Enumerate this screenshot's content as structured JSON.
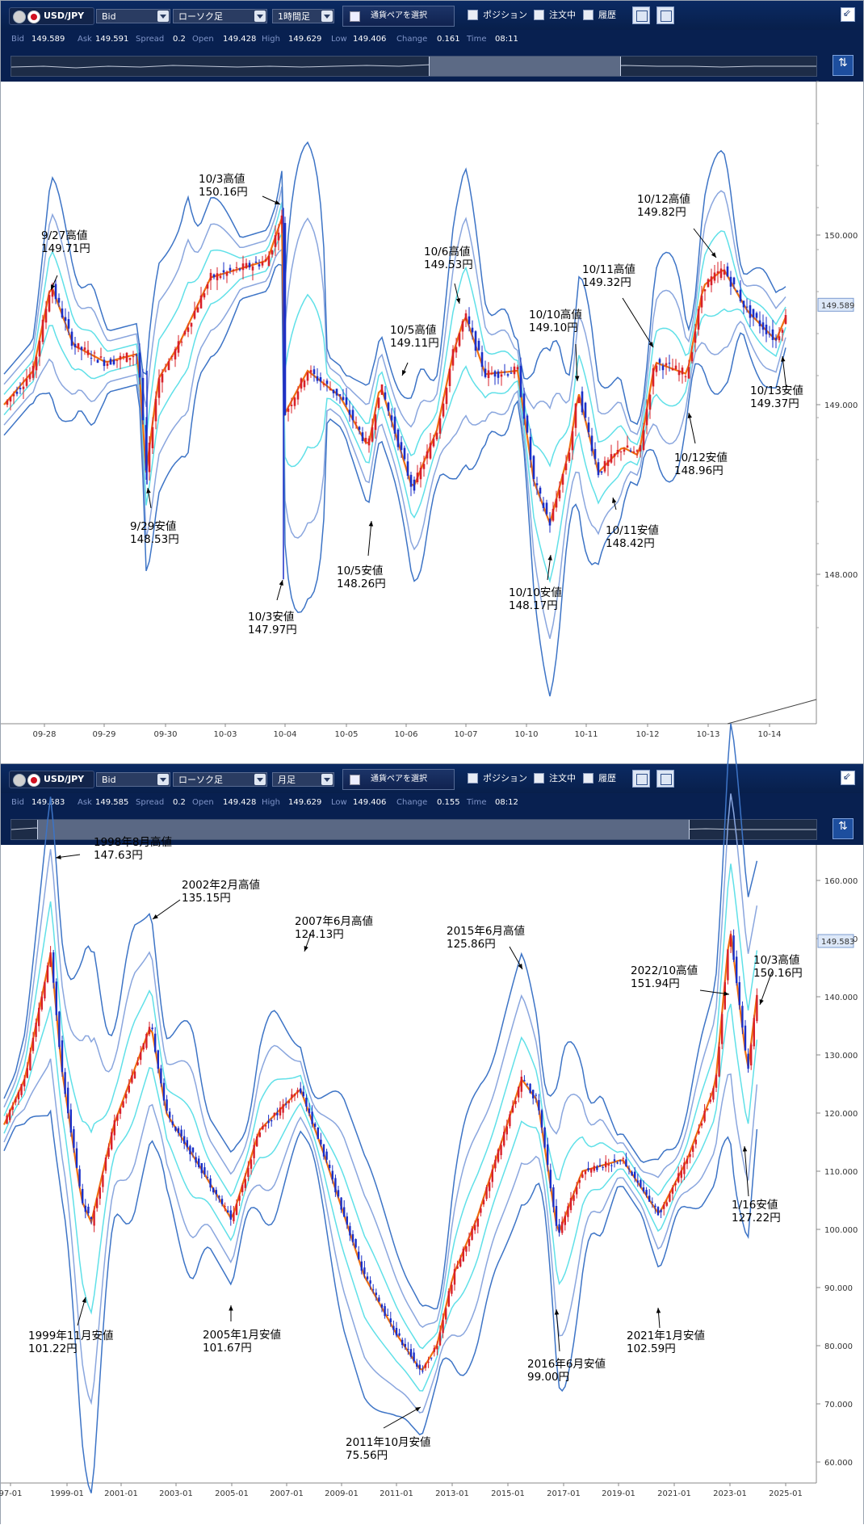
{
  "colors": {
    "bull": "#d8202a",
    "bear": "#1a2fc8",
    "ma": "#f07010",
    "bb1": "#60e0e8",
    "bb2": "#8aa6de",
    "bb3": "#3d74c6"
  },
  "icons": [
    "japan-flag-icon",
    "us-flag-icon",
    "dropdown-arrow-icon",
    "checkbox-icon",
    "window-icon",
    "minimize-icon",
    "expand-icon"
  ],
  "top": {
    "toolbar": {
      "pair": "USD/JPY",
      "price_type": "Bid",
      "chart_type": "ローソク足",
      "period": "1時間足",
      "select_pair": "通貨ペアを選択",
      "position": "ポジション",
      "orders": "注文中",
      "history": "履歴"
    },
    "quote": {
      "bid_label": "Bid",
      "bid": "149.589",
      "ask_label": "Ask",
      "ask": "149.591",
      "spread_label": "Spread",
      "spread": "0.2",
      "open_label": "Open",
      "open": "149.428",
      "high_label": "High",
      "high": "149.629",
      "low_label": "Low",
      "low": "149.406",
      "change_label": "Change",
      "change": "0.161",
      "time_label": "Time",
      "time": "08:11"
    },
    "price_badge": "149.589",
    "yticks": [
      "150.000",
      "149.000",
      "148.000"
    ],
    "xticks": [
      "09-28",
      "09-29",
      "09-30",
      "10-03",
      "10-04",
      "10-05",
      "10-06",
      "10-07",
      "10-10",
      "10-11",
      "10-12",
      "10-13",
      "10-14"
    ],
    "annotations": [
      {
        "l1": "9/27高値",
        "l2": "149.71円"
      },
      {
        "l1": "10/3高値",
        "l2": "150.16円"
      },
      {
        "l1": "10/6高値",
        "l2": "149.53円"
      },
      {
        "l1": "10/5高値",
        "l2": "149.11円"
      },
      {
        "l1": "10/10高値",
        "l2": "149.10円"
      },
      {
        "l1": "10/11高値",
        "l2": "149.32円"
      },
      {
        "l1": "10/12高値",
        "l2": "149.82円"
      },
      {
        "l1": "10/13安値",
        "l2": "149.37円"
      },
      {
        "l1": "10/12安値",
        "l2": "148.96円"
      },
      {
        "l1": "9/29安値",
        "l2": "148.53円"
      },
      {
        "l1": "10/11安値",
        "l2": "148.42円"
      },
      {
        "l1": "10/5安値",
        "l2": "148.26円"
      },
      {
        "l1": "10/10安値",
        "l2": "148.17円"
      },
      {
        "l1": "10/3安値",
        "l2": "147.97円"
      }
    ]
  },
  "bottom": {
    "toolbar": {
      "pair": "USD/JPY",
      "price_type": "Bid",
      "chart_type": "ローソク足",
      "period": "月足",
      "select_pair": "通貨ペアを選択",
      "position": "ポジション",
      "orders": "注文中",
      "history": "履歴"
    },
    "quote": {
      "bid_label": "Bid",
      "bid": "149.583",
      "ask_label": "Ask",
      "ask": "149.585",
      "spread_label": "Spread",
      "spread": "0.2",
      "open_label": "Open",
      "open": "149.428",
      "high_label": "High",
      "high": "149.629",
      "low_label": "Low",
      "low": "149.406",
      "change_label": "Change",
      "change": "0.155",
      "time_label": "Time",
      "time": "08:12"
    },
    "price_badge": "149.583",
    "yticks": [
      "160.000",
      "150.000",
      "140.000",
      "130.000",
      "120.000",
      "110.000",
      "100.000",
      "90.000",
      "80.000",
      "70.000",
      "60.000"
    ],
    "xticks": [
      "97-01",
      "1999-01",
      "2001-01",
      "2003-01",
      "2005-01",
      "2007-01",
      "2009-01",
      "2011-01",
      "2013-01",
      "2015-01",
      "2017-01",
      "2019-01",
      "2021-01",
      "2023-01",
      "2025-01"
    ],
    "annotations": [
      {
        "l1": "1998年8月高値",
        "l2": "147.63円"
      },
      {
        "l1": "2002年2月高値",
        "l2": "135.15円"
      },
      {
        "l1": "2007年6月高値",
        "l2": "124.13円"
      },
      {
        "l1": "2015年6月高値",
        "l2": "125.86円"
      },
      {
        "l1": "2022/10高値",
        "l2": "151.94円"
      },
      {
        "l1": "10/3高値",
        "l2": "150.16円"
      },
      {
        "l1": "1/16安値",
        "l2": "127.22円"
      },
      {
        "l1": "2021年1月安値",
        "l2": "102.59円"
      },
      {
        "l1": "2016年6月安値",
        "l2": "99.00円"
      },
      {
        "l1": "2011年10月安値",
        "l2": "75.56円"
      },
      {
        "l1": "2005年1月安値",
        "l2": "101.67円"
      },
      {
        "l1": "1999年11月安値",
        "l2": "101.22円"
      }
    ]
  }
}
